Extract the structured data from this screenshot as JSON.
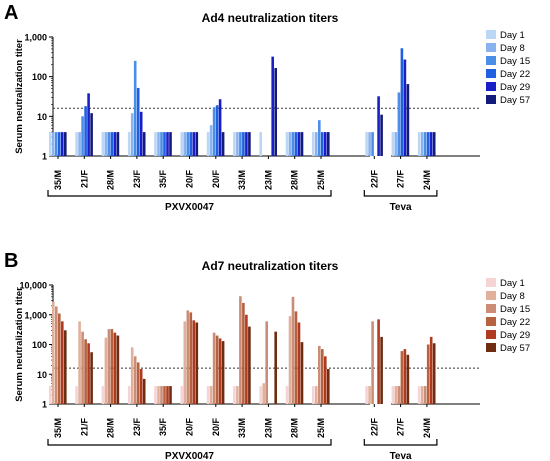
{
  "chart_data": [
    {
      "type": "bar",
      "panel_label": "A",
      "title": "Ad4 neutralization titers",
      "ylabel": "Serum neutralization titer",
      "yscale": "log",
      "ylim": [
        1,
        1000
      ],
      "yticks": [
        "1",
        "10",
        "100",
        "1,000"
      ],
      "threshold": 16,
      "colors": [
        "#bcd6f5",
        "#8ab2ee",
        "#4a8ee8",
        "#1f5fe0",
        "#1a1ec8",
        "#121a7a"
      ],
      "series_names": [
        "Day 1",
        "Day 8",
        "Day 15",
        "Day 22",
        "Day 29",
        "Day 57"
      ],
      "categories": [
        "35/M",
        "21/F",
        "28/M",
        "23/F",
        "35/F",
        "20/F",
        "20/F",
        "33/M",
        "23/M",
        "28/M",
        "25/M",
        "22/F",
        "27/F",
        "24/M"
      ],
      "values": [
        [
          4,
          4,
          4,
          4,
          4,
          4
        ],
        [
          4,
          4,
          10,
          18,
          38,
          12
        ],
        [
          4,
          4,
          4,
          4,
          4,
          4
        ],
        [
          4,
          12,
          250,
          52,
          13,
          4
        ],
        [
          4,
          4,
          4,
          4,
          4,
          4
        ],
        [
          4,
          4,
          4,
          4,
          4,
          4
        ],
        [
          4,
          6,
          17,
          19,
          27,
          4
        ],
        [
          4,
          4,
          4,
          4,
          4,
          4
        ],
        [
          4,
          null,
          null,
          null,
          320,
          165
        ],
        [
          4,
          4,
          4,
          4,
          4,
          4
        ],
        [
          4,
          4,
          8,
          4,
          4,
          4
        ],
        [
          4,
          4,
          4,
          null,
          32,
          11
        ],
        [
          4,
          4,
          40,
          520,
          270,
          65
        ],
        [
          4,
          4,
          4,
          4,
          4,
          4
        ]
      ],
      "groups": [
        {
          "name": "PXVX0047",
          "from": 0,
          "to": 10
        },
        {
          "name": "Teva",
          "from": 11,
          "to": 13
        }
      ]
    },
    {
      "type": "bar",
      "panel_label": "B",
      "title": "Ad7 neutralization titers",
      "ylabel": "Serum neutralization titer",
      "yscale": "log",
      "ylim": [
        1,
        10000
      ],
      "yticks": [
        "1",
        "10",
        "100",
        "1,000",
        "10,000"
      ],
      "threshold": 16,
      "colors": [
        "#f6d3d5",
        "#e0b09c",
        "#cc8d76",
        "#b56241",
        "#b03a20",
        "#6e2c10"
      ],
      "series_names": [
        "Day 1",
        "Day 8",
        "Day 15",
        "Day 22",
        "Day 29",
        "Day 57"
      ],
      "categories": [
        "35/M",
        "21/F",
        "28/M",
        "23/F",
        "35/F",
        "20/F",
        "20/F",
        "33/M",
        "23/M",
        "28/M",
        "25/M",
        "22/F",
        "27/F",
        "24/M"
      ],
      "values": [
        [
          4,
          2700,
          1900,
          1100,
          600,
          300
        ],
        [
          4,
          600,
          270,
          150,
          110,
          55
        ],
        [
          4,
          170,
          330,
          330,
          250,
          200
        ],
        [
          4,
          80,
          40,
          25,
          15,
          7
        ],
        [
          4,
          4,
          4,
          4,
          4,
          4
        ],
        [
          4,
          600,
          1400,
          1200,
          650,
          550
        ],
        [
          4,
          4,
          250,
          200,
          160,
          130
        ],
        [
          4,
          4,
          4200,
          2500,
          1000,
          400
        ],
        [
          4,
          5,
          600,
          null,
          null,
          270
        ],
        [
          4,
          900,
          4000,
          1300,
          550,
          120
        ],
        [
          4,
          4,
          90,
          70,
          40,
          15
        ],
        [
          4,
          4,
          600,
          null,
          700,
          180
        ],
        [
          4,
          4,
          4,
          60,
          70,
          45
        ],
        [
          4,
          4,
          4,
          100,
          180,
          110
        ]
      ],
      "groups": [
        {
          "name": "PXVX0047",
          "from": 0,
          "to": 10
        },
        {
          "name": "Teva",
          "from": 11,
          "to": 13
        }
      ]
    }
  ]
}
